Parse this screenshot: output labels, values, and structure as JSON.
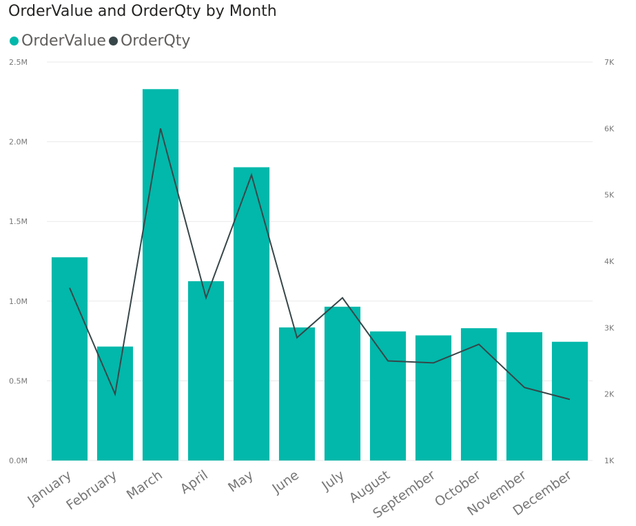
{
  "chart_data": {
    "type": "bar",
    "title": "OrderValue and OrderQty by Month",
    "categories": [
      "January",
      "February",
      "March",
      "April",
      "May",
      "June",
      "July",
      "August",
      "September",
      "October",
      "November",
      "December"
    ],
    "series": [
      {
        "name": "OrderValue",
        "type": "bar",
        "axis": "left",
        "color": "#01B8AA",
        "values": [
          1275000,
          715000,
          2330000,
          1125000,
          1840000,
          835000,
          965000,
          810000,
          785000,
          830000,
          805000,
          745000
        ]
      },
      {
        "name": "OrderQty",
        "type": "line",
        "axis": "right",
        "color": "#374649",
        "values": [
          3600,
          2000,
          6000,
          3450,
          5300,
          2850,
          3450,
          2500,
          2470,
          2750,
          2100,
          1920
        ]
      }
    ],
    "y_left": {
      "ylim": [
        0,
        2500000
      ],
      "ticks": [
        0,
        500000,
        1000000,
        1500000,
        2000000,
        2500000
      ],
      "tick_labels": [
        "0.0M",
        "0.5M",
        "1.0M",
        "1.5M",
        "2.0M",
        "2.5M"
      ]
    },
    "y_right": {
      "ylim": [
        1000,
        7000
      ],
      "ticks": [
        1000,
        2000,
        3000,
        4000,
        5000,
        6000,
        7000
      ],
      "tick_labels": [
        "1K",
        "2K",
        "3K",
        "4K",
        "5K",
        "6K",
        "7K"
      ]
    },
    "grid": true,
    "legend": "top-left"
  }
}
